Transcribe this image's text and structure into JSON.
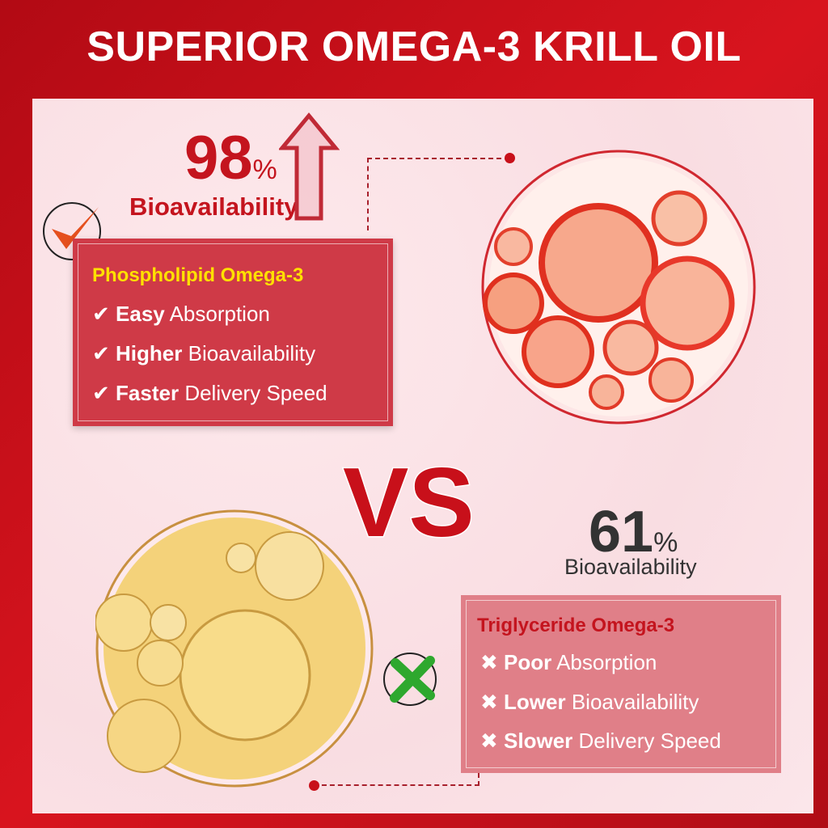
{
  "title": "SUPERIOR OMEGA-3 KRILL OIL",
  "krill": {
    "value": "98",
    "unit": "%",
    "label": "Bioavailability",
    "heading": "Phospholipid Omega-3",
    "items": [
      {
        "bold": "Easy",
        "rest": "Absorption"
      },
      {
        "bold": "Higher",
        "rest": "Bioavailability"
      },
      {
        "bold": "Faster",
        "rest": "Delivery Speed"
      }
    ],
    "icon": "check-icon"
  },
  "vs": "VS",
  "fish": {
    "value": "61",
    "unit": "%",
    "label": "Bioavailability",
    "heading": "Triglyceride Omega-3",
    "items": [
      {
        "bold": "Poor",
        "rest": "Absorption"
      },
      {
        "bold": "Lower",
        "rest": "Bioavailability"
      },
      {
        "bold": "Slower",
        "rest": "Delivery Speed"
      }
    ],
    "icon": "cross-icon"
  },
  "colors": {
    "brand_red": "#c8101a",
    "box_red": "#cf3a47",
    "box_pink": "#e07f88",
    "heading_yellow": "#ffe000",
    "green": "#2ea82e"
  }
}
